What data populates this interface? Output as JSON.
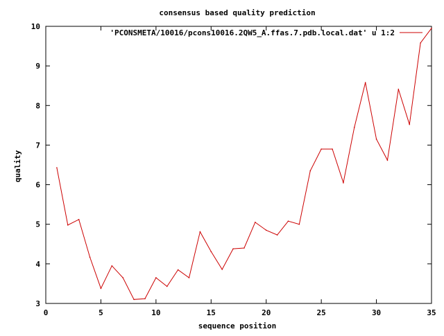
{
  "chart_data": {
    "type": "line",
    "title": "consensus based quality prediction",
    "xlabel": "sequence position",
    "ylabel": "quality",
    "xlim": [
      0,
      35
    ],
    "ylim": [
      3,
      10
    ],
    "xticks": [
      0,
      5,
      10,
      15,
      20,
      25,
      30,
      35
    ],
    "yticks": [
      3,
      4,
      5,
      6,
      7,
      8,
      9,
      10
    ],
    "grid": false,
    "legend_position": "top-right",
    "series": [
      {
        "name": "'PCONSMETA/10016/pcons10016.2QW5_A.ffas.7.pdb.local.dat' u 1:2",
        "color": "#cc0000",
        "x": [
          1,
          2,
          3,
          4,
          5,
          6,
          7,
          8,
          9,
          10,
          11,
          12,
          13,
          14,
          15,
          16,
          17,
          18,
          19,
          20,
          21,
          22,
          23,
          24,
          25,
          26,
          27,
          28,
          29,
          30,
          31,
          32,
          33,
          34,
          35
        ],
        "y": [
          6.43,
          4.98,
          5.12,
          4.17,
          3.38,
          3.95,
          3.65,
          3.1,
          3.12,
          3.65,
          3.43,
          3.85,
          3.65,
          4.81,
          4.31,
          3.86,
          4.38,
          4.4,
          5.05,
          4.85,
          4.73,
          5.08,
          5.0,
          6.35,
          6.9,
          6.9,
          6.05,
          7.45,
          8.58,
          7.15,
          6.62,
          8.41,
          7.52,
          9.58,
          9.95
        ]
      }
    ]
  }
}
